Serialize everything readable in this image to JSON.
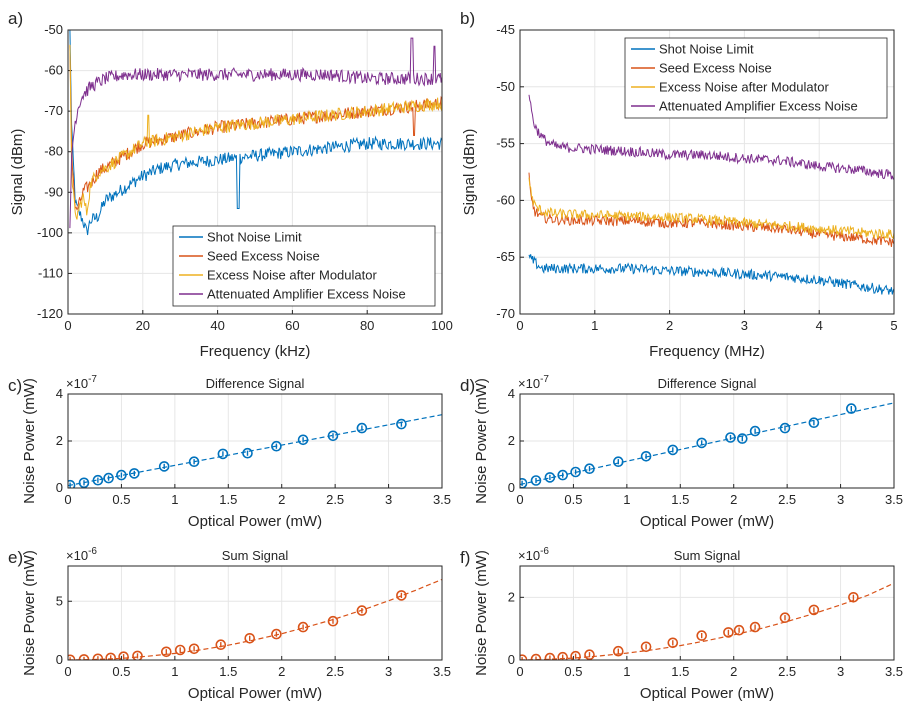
{
  "colors": {
    "shot": "#0072BD",
    "seed": "#D95319",
    "mod": "#EDB120",
    "amp": "#7E2F8E",
    "grid": "#e6e6e6",
    "axis": "#262626"
  },
  "chart_data": [
    {
      "id": "a",
      "panel_label": "a)",
      "type": "line",
      "xlabel": "Frequency (kHz)",
      "ylabel": "Signal (dBm)",
      "xlim": [
        0,
        100
      ],
      "ylim": [
        -120,
        -50
      ],
      "xticks": [
        "0",
        "20",
        "40",
        "60",
        "80",
        "100"
      ],
      "yticks": [
        "-120",
        "-110",
        "-100",
        "-90",
        "-80",
        "-70",
        "-60",
        "-50"
      ],
      "grid": true,
      "legend_position": "bottom-right",
      "series": [
        {
          "name": "Shot Noise Limit",
          "color": "#0072BD",
          "x": [
            0.5,
            1,
            2,
            3,
            4,
            5,
            6,
            8,
            10,
            15,
            20,
            25,
            30,
            40,
            50,
            60,
            70,
            80,
            90,
            100
          ],
          "y": [
            -50,
            -75,
            -93,
            -95,
            -97,
            -100,
            -97,
            -96,
            -92,
            -89,
            -86,
            -84,
            -83,
            -82,
            -81,
            -80,
            -79,
            -78,
            -78,
            -78
          ]
        },
        {
          "name": "Seed Excess Noise",
          "color": "#D95319",
          "x": [
            0.5,
            1,
            2,
            3,
            4,
            5,
            6,
            8,
            10,
            15,
            20,
            25,
            30,
            40,
            50,
            60,
            70,
            80,
            90,
            100
          ],
          "y": [
            -55,
            -80,
            -95,
            -93,
            -90,
            -89,
            -88,
            -85,
            -84,
            -81,
            -78,
            -77,
            -76,
            -74,
            -73,
            -72,
            -71,
            -70,
            -69,
            -68
          ]
        },
        {
          "name": "Excess Noise after Modulator",
          "color": "#EDB120",
          "x": [
            0.5,
            1,
            2,
            3,
            4,
            5,
            6,
            8,
            10,
            15,
            20,
            25,
            30,
            40,
            50,
            60,
            70,
            80,
            90,
            100
          ],
          "y": [
            -55,
            -85,
            -97,
            -94,
            -91,
            -95,
            -88,
            -85,
            -84,
            -81,
            -78,
            -77,
            -76,
            -74,
            -73,
            -72,
            -71,
            -70,
            -69,
            -68
          ]
        },
        {
          "name": "Attenuated Amplifier Excess Noise",
          "color": "#7E2F8E",
          "x": [
            0.5,
            1,
            2,
            3,
            4,
            5,
            6,
            8,
            10,
            15,
            20,
            25,
            30,
            40,
            50,
            60,
            70,
            80,
            90,
            100
          ],
          "y": [
            -100,
            -80,
            -72,
            -68,
            -66,
            -65,
            -64,
            -63,
            -62,
            -61,
            -61,
            -61,
            -61,
            -61,
            -61,
            -61,
            -61,
            -62,
            -62,
            -62
          ]
        }
      ]
    },
    {
      "id": "b",
      "panel_label": "b)",
      "type": "line",
      "xlabel": "Frequency (MHz)",
      "ylabel": "Signal (dBm)",
      "xlim": [
        0,
        5
      ],
      "ylim": [
        -70,
        -45
      ],
      "xticks": [
        "0",
        "1",
        "2",
        "3",
        "4",
        "5"
      ],
      "yticks": [
        "-70",
        "-65",
        "-60",
        "-55",
        "-50",
        "-45"
      ],
      "grid": true,
      "legend_position": "top-right",
      "series": [
        {
          "name": "Shot Noise Limit",
          "color": "#0072BD",
          "x": [
            0.12,
            0.2,
            0.3,
            0.5,
            1.0,
            1.5,
            2.0,
            2.5,
            3.0,
            3.5,
            4.0,
            4.5,
            5.0
          ],
          "y": [
            -65,
            -65.5,
            -66,
            -66,
            -66,
            -66,
            -66.2,
            -66.3,
            -66.5,
            -66.7,
            -67,
            -67.5,
            -68
          ]
        },
        {
          "name": "Seed Excess Noise",
          "color": "#D95319",
          "x": [
            0.12,
            0.15,
            0.2,
            0.3,
            0.5,
            1.0,
            1.5,
            2.0,
            2.5,
            3.0,
            3.5,
            4.0,
            4.5,
            5.0
          ],
          "y": [
            -58,
            -60,
            -61,
            -61.5,
            -61.7,
            -61.8,
            -61.8,
            -62,
            -62,
            -62.3,
            -62.5,
            -63,
            -63.3,
            -63.7
          ]
        },
        {
          "name": "Excess Noise after Modulator",
          "color": "#EDB120",
          "x": [
            0.12,
            0.15,
            0.2,
            0.3,
            0.5,
            1.0,
            1.5,
            2.0,
            2.5,
            3.0,
            3.5,
            4.0,
            4.5,
            5.0
          ],
          "y": [
            -58,
            -59.5,
            -60.5,
            -61,
            -61.2,
            -61.3,
            -61.4,
            -61.5,
            -61.7,
            -62,
            -62.2,
            -62.5,
            -62.8,
            -63
          ]
        },
        {
          "name": "Attenuated Amplifier Excess Noise",
          "color": "#7E2F8E",
          "x": [
            0.12,
            0.15,
            0.2,
            0.3,
            0.4,
            0.5,
            1.0,
            1.5,
            2.0,
            2.5,
            3.0,
            3.5,
            4.0,
            4.5,
            5.0
          ],
          "y": [
            -50.5,
            -52,
            -53.5,
            -54.5,
            -55,
            -55.3,
            -55.5,
            -55.7,
            -56,
            -56,
            -56.3,
            -56.5,
            -57,
            -57.3,
            -57.8
          ]
        }
      ]
    },
    {
      "id": "c",
      "panel_label": "c)",
      "type": "scatter",
      "title": "Difference Signal",
      "xlabel": "Optical Power (mW)",
      "ylabel": "Noise Power (mW)",
      "exponent": "-7",
      "xlim": [
        0,
        3.5
      ],
      "ylim": [
        0,
        4
      ],
      "xticks": [
        "0",
        "0.5",
        "1",
        "1.5",
        "2",
        "2.5",
        "3",
        "3.5"
      ],
      "yticks": [
        "0",
        "2",
        "4"
      ],
      "grid": true,
      "color": "#0072BD",
      "points": {
        "x": [
          0.02,
          0.15,
          0.28,
          0.38,
          0.5,
          0.62,
          0.9,
          1.18,
          1.45,
          1.68,
          1.95,
          2.2,
          2.48,
          2.75,
          3.12
        ],
        "y": [
          0.12,
          0.22,
          0.33,
          0.42,
          0.55,
          0.62,
          0.92,
          1.12,
          1.45,
          1.48,
          1.78,
          2.05,
          2.22,
          2.55,
          2.72
        ]
      },
      "fit": {
        "x": [
          0,
          3.5
        ],
        "y": [
          0.1,
          3.12
        ]
      }
    },
    {
      "id": "d",
      "panel_label": "d)",
      "type": "scatter",
      "title": "Difference Signal",
      "xlabel": "Optical Power (mW)",
      "ylabel": "Noise Power (mW)",
      "exponent": "-7",
      "xlim": [
        0,
        3.5
      ],
      "ylim": [
        0,
        4
      ],
      "xticks": [
        "0",
        "0.5",
        "1",
        "1.5",
        "2",
        "2.5",
        "3",
        "3.5"
      ],
      "yticks": [
        "0",
        "2",
        "4"
      ],
      "grid": true,
      "color": "#0072BD",
      "points": {
        "x": [
          0.02,
          0.15,
          0.28,
          0.4,
          0.52,
          0.65,
          0.92,
          1.18,
          1.43,
          1.7,
          1.97,
          2.08,
          2.2,
          2.48,
          2.75,
          3.1
        ],
        "y": [
          0.2,
          0.32,
          0.45,
          0.55,
          0.68,
          0.82,
          1.12,
          1.35,
          1.62,
          1.92,
          2.15,
          2.1,
          2.42,
          2.55,
          2.78,
          3.38
        ]
      },
      "fit": {
        "x": [
          0,
          3.5
        ],
        "y": [
          0.15,
          3.62
        ]
      }
    },
    {
      "id": "e",
      "panel_label": "e)",
      "type": "scatter",
      "title": "Sum Signal",
      "xlabel": "Optical Power (mW)",
      "ylabel": "Noise Power (mW)",
      "exponent": "-6",
      "xlim": [
        0,
        3.5
      ],
      "ylim": [
        0,
        8
      ],
      "xticks": [
        "0",
        "0.5",
        "1",
        "1.5",
        "2",
        "2.5",
        "3",
        "3.5"
      ],
      "yticks": [
        "0",
        "5"
      ],
      "grid": true,
      "color": "#D95319",
      "points": {
        "x": [
          0.02,
          0.15,
          0.28,
          0.4,
          0.52,
          0.65,
          0.92,
          1.05,
          1.18,
          1.43,
          1.7,
          1.95,
          2.2,
          2.48,
          2.75,
          3.12
        ],
        "y": [
          0.02,
          0.05,
          0.1,
          0.18,
          0.28,
          0.35,
          0.7,
          0.85,
          0.95,
          1.3,
          1.85,
          2.2,
          2.8,
          3.3,
          4.2,
          5.5
        ]
      },
      "fit": {
        "x": [
          0,
          0.25,
          0.5,
          0.75,
          1.0,
          1.25,
          1.5,
          1.75,
          2.0,
          2.25,
          2.5,
          2.75,
          3.0,
          3.25,
          3.5
        ],
        "y": [
          0,
          0.04,
          0.14,
          0.32,
          0.56,
          0.88,
          1.26,
          1.72,
          2.24,
          2.84,
          3.5,
          4.24,
          5.04,
          5.92,
          6.86
        ]
      }
    },
    {
      "id": "f",
      "panel_label": "f)",
      "type": "scatter",
      "title": "Sum Signal",
      "xlabel": "Optical Power (mW)",
      "ylabel": "Noise Power (mW)",
      "exponent": "-6",
      "xlim": [
        0,
        3.5
      ],
      "ylim": [
        0,
        3
      ],
      "xticks": [
        "0",
        "0.5",
        "1",
        "1.5",
        "2",
        "2.5",
        "3",
        "3.5"
      ],
      "yticks": [
        "0",
        "2"
      ],
      "grid": true,
      "color": "#D95319",
      "points": {
        "x": [
          0.02,
          0.15,
          0.28,
          0.4,
          0.52,
          0.65,
          0.92,
          1.18,
          1.43,
          1.7,
          1.95,
          2.05,
          2.2,
          2.48,
          2.75,
          3.12
        ],
        "y": [
          0.01,
          0.03,
          0.06,
          0.09,
          0.12,
          0.17,
          0.28,
          0.42,
          0.55,
          0.78,
          0.88,
          0.95,
          1.05,
          1.35,
          1.6,
          2.0
        ]
      },
      "fit": {
        "x": [
          0,
          0.25,
          0.5,
          0.75,
          1.0,
          1.25,
          1.5,
          1.75,
          2.0,
          2.25,
          2.5,
          2.75,
          3.0,
          3.25,
          3.5
        ],
        "y": [
          0,
          0.02,
          0.06,
          0.13,
          0.22,
          0.33,
          0.46,
          0.62,
          0.8,
          1.0,
          1.23,
          1.48,
          1.76,
          2.06,
          2.45
        ]
      }
    }
  ]
}
